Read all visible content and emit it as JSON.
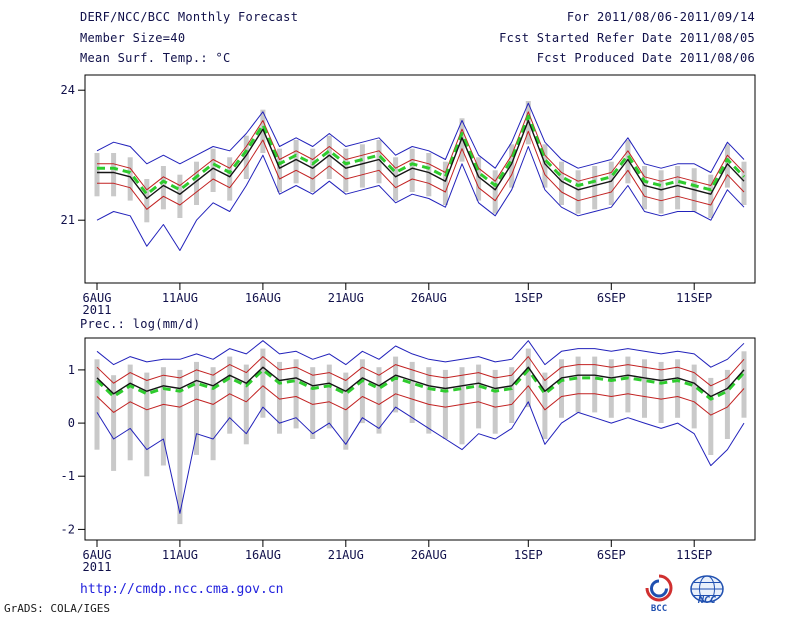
{
  "header": {
    "title": "DERF/NCC/BCC Monthly Forecast",
    "member_size": "Member Size=40",
    "for_range": "For 2011/08/06-2011/09/14",
    "fcst_started": "Fcst Started Refer Date 2011/08/05",
    "fcst_produced": "Fcst Produced Date 2011/08/06"
  },
  "footer": {
    "url": "http://cmdp.ncc.cma.gov.cn",
    "credit": "GrADS: COLA/IGES",
    "bcc_label": "BCC",
    "ncc_label": "NCC"
  },
  "colors": {
    "text": "#10104a",
    "blue_line": "#2222bb",
    "red_line": "#c22222",
    "black_line": "#151515",
    "green_line": "#2ecc2e",
    "bar": "#c9c9c9",
    "frame": "#000000",
    "url": "#2222dd"
  },
  "chart_data": [
    {
      "type": "line",
      "name": "mean-surface-temperature",
      "title": "Mean Surf. Temp.: °C",
      "x": [
        "6AUG",
        "7AUG",
        "8AUG",
        "9AUG",
        "10AUG",
        "11AUG",
        "12AUG",
        "13AUG",
        "14AUG",
        "15AUG",
        "16AUG",
        "17AUG",
        "18AUG",
        "19AUG",
        "20AUG",
        "21AUG",
        "22AUG",
        "23AUG",
        "24AUG",
        "25AUG",
        "26AUG",
        "27AUG",
        "28AUG",
        "29AUG",
        "30AUG",
        "31AUG",
        "1SEP",
        "2SEP",
        "3SEP",
        "4SEP",
        "5SEP",
        "6SEP",
        "7SEP",
        "8SEP",
        "9SEP",
        "10SEP",
        "11SEP",
        "12SEP",
        "13SEP",
        "14SEP"
      ],
      "x_tick_indices": [
        0,
        5,
        10,
        15,
        20,
        26,
        31,
        36
      ],
      "x_tick_labels": [
        "6AUG",
        "11AUG",
        "16AUG",
        "21AUG",
        "26AUG",
        "1SEP",
        "6SEP",
        "11SEP"
      ],
      "year_label": "2011",
      "ylim": [
        19.55,
        24.35
      ],
      "y_ticks": [
        21,
        24
      ],
      "grid": false,
      "legend": "none",
      "series": [
        {
          "name": "ensemble-max-blue",
          "color": "blue_line",
          "style": "solid",
          "width": 1,
          "values": [
            22.6,
            22.8,
            22.7,
            22.3,
            22.5,
            22.3,
            22.5,
            22.7,
            22.6,
            23.0,
            23.5,
            22.7,
            22.9,
            22.7,
            23.0,
            22.7,
            22.8,
            22.9,
            22.5,
            22.7,
            22.6,
            22.4,
            23.3,
            22.5,
            22.2,
            22.8,
            23.7,
            22.8,
            22.4,
            22.2,
            22.3,
            22.4,
            22.9,
            22.3,
            22.2,
            22.3,
            22.3,
            22.1,
            22.8,
            22.4
          ]
        },
        {
          "name": "ensemble-min-blue",
          "color": "blue_line",
          "style": "solid",
          "width": 1,
          "values": [
            21.0,
            21.2,
            21.1,
            20.4,
            20.9,
            20.3,
            21.0,
            21.4,
            21.2,
            21.8,
            22.5,
            21.6,
            21.8,
            21.6,
            21.9,
            21.6,
            21.7,
            21.8,
            21.4,
            21.6,
            21.5,
            21.3,
            22.3,
            21.4,
            21.1,
            21.7,
            22.7,
            21.7,
            21.3,
            21.1,
            21.2,
            21.3,
            21.8,
            21.2,
            21.1,
            21.2,
            21.2,
            21.0,
            21.7,
            21.3
          ]
        },
        {
          "name": "upper-quartile-red",
          "color": "red_line",
          "style": "solid",
          "width": 1,
          "values": [
            22.3,
            22.3,
            22.2,
            21.7,
            22.0,
            21.8,
            22.1,
            22.4,
            22.2,
            22.7,
            23.3,
            22.4,
            22.6,
            22.4,
            22.7,
            22.4,
            22.5,
            22.6,
            22.2,
            22.4,
            22.3,
            22.1,
            23.1,
            22.2,
            21.9,
            22.5,
            23.5,
            22.5,
            22.1,
            21.9,
            22.0,
            22.1,
            22.6,
            22.0,
            21.9,
            22.0,
            21.9,
            21.8,
            22.5,
            22.1
          ]
        },
        {
          "name": "lower-quartile-red",
          "color": "red_line",
          "style": "solid",
          "width": 1,
          "values": [
            21.85,
            21.85,
            21.75,
            21.25,
            21.55,
            21.35,
            21.65,
            21.95,
            21.75,
            22.25,
            22.85,
            21.95,
            22.15,
            21.95,
            22.25,
            21.95,
            22.05,
            22.15,
            21.75,
            21.95,
            21.85,
            21.65,
            22.65,
            21.75,
            21.45,
            22.05,
            23.05,
            22.05,
            21.65,
            21.45,
            21.55,
            21.65,
            22.15,
            21.55,
            21.45,
            21.55,
            21.45,
            21.35,
            22.05,
            21.65
          ]
        },
        {
          "name": "median-green-dashed",
          "color": "green_line",
          "style": "dashed",
          "width": 3,
          "values": [
            22.2,
            22.2,
            22.1,
            21.6,
            21.9,
            21.7,
            22.0,
            22.3,
            22.1,
            22.6,
            23.2,
            22.3,
            22.5,
            22.3,
            22.6,
            22.3,
            22.4,
            22.5,
            22.1,
            22.3,
            22.2,
            22.0,
            23.0,
            22.1,
            21.8,
            22.4,
            23.4,
            22.4,
            22.0,
            21.8,
            21.9,
            22.0,
            22.5,
            21.9,
            21.8,
            21.9,
            21.8,
            21.7,
            22.4,
            22.0
          ]
        },
        {
          "name": "ensemble-mean-black",
          "color": "black_line",
          "style": "solid",
          "width": 1.4,
          "values": [
            22.1,
            22.1,
            22.0,
            21.5,
            21.8,
            21.6,
            21.9,
            22.2,
            22.0,
            22.5,
            23.1,
            22.2,
            22.4,
            22.2,
            22.5,
            22.2,
            22.3,
            22.4,
            22.0,
            22.2,
            22.1,
            21.9,
            22.9,
            22.0,
            21.7,
            22.3,
            23.3,
            22.3,
            21.9,
            21.7,
            21.8,
            21.9,
            22.4,
            21.8,
            21.7,
            21.8,
            21.7,
            21.6,
            22.3,
            21.9
          ]
        }
      ],
      "bars": {
        "name": "member-spread-bars",
        "color": "bar",
        "top": [
          22.55,
          22.55,
          22.45,
          21.95,
          22.25,
          22.05,
          22.35,
          22.65,
          22.45,
          22.95,
          23.55,
          22.65,
          22.85,
          22.65,
          22.95,
          22.65,
          22.75,
          22.85,
          22.45,
          22.65,
          22.55,
          22.35,
          23.35,
          22.45,
          22.15,
          22.75,
          23.75,
          22.75,
          22.35,
          22.15,
          22.25,
          22.35,
          22.85,
          22.25,
          22.15,
          22.25,
          22.2,
          22.05,
          22.75,
          22.35
        ],
        "bottom": [
          21.55,
          21.55,
          21.45,
          20.95,
          21.25,
          21.05,
          21.35,
          21.65,
          21.45,
          21.95,
          22.55,
          21.65,
          21.85,
          21.65,
          21.95,
          21.65,
          21.75,
          21.85,
          21.45,
          21.65,
          21.55,
          21.35,
          22.35,
          21.45,
          21.15,
          21.75,
          22.75,
          21.75,
          21.35,
          21.15,
          21.25,
          21.35,
          21.85,
          21.25,
          21.15,
          21.25,
          21.2,
          21.05,
          21.75,
          21.35
        ]
      }
    },
    {
      "type": "line",
      "name": "precipitation",
      "title": "Prec.: log(mm/d)",
      "x": [
        "6AUG",
        "7AUG",
        "8AUG",
        "9AUG",
        "10AUG",
        "11AUG",
        "12AUG",
        "13AUG",
        "14AUG",
        "15AUG",
        "16AUG",
        "17AUG",
        "18AUG",
        "19AUG",
        "20AUG",
        "21AUG",
        "22AUG",
        "23AUG",
        "24AUG",
        "25AUG",
        "26AUG",
        "27AUG",
        "28AUG",
        "29AUG",
        "30AUG",
        "31AUG",
        "1SEP",
        "2SEP",
        "3SEP",
        "4SEP",
        "5SEP",
        "6SEP",
        "7SEP",
        "8SEP",
        "9SEP",
        "10SEP",
        "11SEP",
        "12SEP",
        "13SEP",
        "14SEP"
      ],
      "x_tick_indices": [
        0,
        5,
        10,
        15,
        20,
        26,
        31,
        36
      ],
      "x_tick_labels": [
        "6AUG",
        "11AUG",
        "16AUG",
        "21AUG",
        "26AUG",
        "1SEP",
        "6SEP",
        "11SEP"
      ],
      "year_label": "2011",
      "ylim": [
        -2.2,
        1.6
      ],
      "y_ticks": [
        -2,
        -1,
        0,
        1
      ],
      "grid": false,
      "legend": "none",
      "series": [
        {
          "name": "ensemble-max-blue",
          "color": "blue_line",
          "style": "solid",
          "width": 1,
          "values": [
            1.35,
            1.1,
            1.25,
            1.15,
            1.2,
            1.2,
            1.3,
            1.2,
            1.4,
            1.3,
            1.55,
            1.3,
            1.35,
            1.2,
            1.3,
            1.1,
            1.35,
            1.2,
            1.45,
            1.3,
            1.2,
            1.15,
            1.2,
            1.25,
            1.15,
            1.2,
            1.55,
            1.1,
            1.35,
            1.4,
            1.4,
            1.35,
            1.4,
            1.35,
            1.3,
            1.35,
            1.3,
            1.05,
            1.2,
            1.5
          ]
        },
        {
          "name": "ensemble-min-blue",
          "color": "blue_line",
          "style": "solid",
          "width": 1,
          "values": [
            0.2,
            -0.3,
            -0.1,
            -0.5,
            -0.3,
            -1.7,
            -0.2,
            -0.3,
            0.1,
            -0.2,
            0.3,
            0,
            0.1,
            -0.2,
            0,
            -0.4,
            0.1,
            -0.1,
            0.3,
            0.1,
            -0.1,
            -0.3,
            -0.5,
            -0.2,
            -0.3,
            -0.1,
            0.4,
            -0.4,
            0,
            0.2,
            0.1,
            0,
            0.1,
            0,
            -0.1,
            0,
            -0.2,
            -0.8,
            -0.5,
            0
          ]
        },
        {
          "name": "upper-quartile-red",
          "color": "red_line",
          "style": "solid",
          "width": 1,
          "values": [
            1.05,
            0.75,
            0.95,
            0.8,
            0.9,
            0.85,
            1.0,
            0.9,
            1.1,
            0.95,
            1.25,
            1.0,
            1.05,
            0.9,
            0.95,
            0.8,
            1.05,
            0.9,
            1.1,
            1.0,
            0.9,
            0.85,
            0.9,
            0.95,
            0.85,
            0.9,
            1.25,
            0.8,
            1.05,
            1.1,
            1.1,
            1.05,
            1.1,
            1.05,
            1.0,
            1.05,
            0.95,
            0.7,
            0.85,
            1.2
          ]
        },
        {
          "name": "lower-quartile-red",
          "color": "red_line",
          "style": "solid",
          "width": 1,
          "values": [
            0.5,
            0.2,
            0.4,
            0.25,
            0.35,
            0.3,
            0.45,
            0.35,
            0.55,
            0.4,
            0.7,
            0.45,
            0.5,
            0.35,
            0.4,
            0.25,
            0.5,
            0.35,
            0.55,
            0.45,
            0.35,
            0.3,
            0.35,
            0.4,
            0.3,
            0.35,
            0.7,
            0.25,
            0.5,
            0.55,
            0.55,
            0.5,
            0.55,
            0.5,
            0.45,
            0.5,
            0.4,
            0.15,
            0.3,
            0.65
          ]
        },
        {
          "name": "median-green-dashed",
          "color": "green_line",
          "style": "dashed",
          "width": 3,
          "values": [
            0.8,
            0.5,
            0.7,
            0.55,
            0.65,
            0.6,
            0.75,
            0.65,
            0.85,
            0.7,
            1.0,
            0.75,
            0.8,
            0.65,
            0.7,
            0.55,
            0.8,
            0.65,
            0.85,
            0.75,
            0.65,
            0.6,
            0.65,
            0.7,
            0.6,
            0.65,
            1.0,
            0.55,
            0.8,
            0.85,
            0.85,
            0.8,
            0.85,
            0.8,
            0.75,
            0.8,
            0.7,
            0.45,
            0.6,
            0.95
          ]
        },
        {
          "name": "ensemble-mean-black",
          "color": "black_line",
          "style": "solid",
          "width": 1.4,
          "values": [
            0.85,
            0.55,
            0.75,
            0.6,
            0.7,
            0.65,
            0.8,
            0.7,
            0.9,
            0.75,
            1.05,
            0.8,
            0.85,
            0.7,
            0.75,
            0.6,
            0.85,
            0.7,
            0.9,
            0.8,
            0.7,
            0.65,
            0.7,
            0.75,
            0.65,
            0.7,
            1.05,
            0.6,
            0.85,
            0.9,
            0.9,
            0.85,
            0.9,
            0.85,
            0.8,
            0.85,
            0.75,
            0.5,
            0.65,
            1.0
          ]
        }
      ],
      "bars": {
        "name": "member-spread-bars",
        "color": "bar",
        "top": [
          1.2,
          0.9,
          1.1,
          0.95,
          1.05,
          1.0,
          1.15,
          1.05,
          1.25,
          1.1,
          1.4,
          1.15,
          1.2,
          1.05,
          1.1,
          0.95,
          1.2,
          1.05,
          1.25,
          1.15,
          1.05,
          1.0,
          1.05,
          1.1,
          1.0,
          1.05,
          1.4,
          0.95,
          1.2,
          1.25,
          1.25,
          1.2,
          1.25,
          1.2,
          1.15,
          1.2,
          1.1,
          0.85,
          1.0,
          1.35
        ],
        "bottom": [
          -0.5,
          -0.9,
          -0.7,
          -1.0,
          -0.8,
          -1.9,
          -0.6,
          -0.7,
          -0.2,
          -0.4,
          0.1,
          -0.2,
          -0.1,
          -0.3,
          -0.1,
          -0.5,
          0,
          -0.2,
          0.2,
          0,
          -0.2,
          -0.3,
          -0.4,
          -0.1,
          -0.2,
          0,
          0.3,
          -0.3,
          0.1,
          0.2,
          0.2,
          0.1,
          0.2,
          0.1,
          0,
          0.1,
          -0.1,
          -0.6,
          -0.3,
          0.1
        ]
      }
    }
  ]
}
